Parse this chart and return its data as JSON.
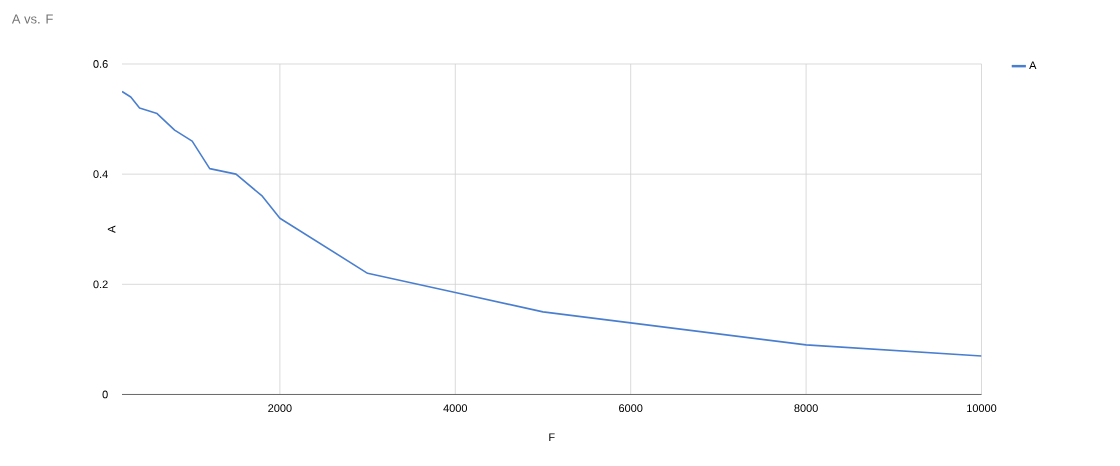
{
  "chart_data": {
    "type": "line",
    "title": "A vs. F",
    "xlabel": "F",
    "ylabel": "A",
    "x": [
      200,
      300,
      400,
      600,
      800,
      1000,
      1200,
      1500,
      1800,
      2000,
      3000,
      4000,
      5000,
      6000,
      8000,
      10000
    ],
    "series": [
      {
        "name": "A",
        "color": "#4a7fd0",
        "values": [
          0.55,
          0.54,
          0.52,
          0.51,
          0.48,
          0.46,
          0.41,
          0.4,
          0.36,
          0.32,
          0.22,
          0.185,
          0.15,
          0.13,
          0.09,
          0.07
        ]
      }
    ],
    "xlim": [
      200,
      10000
    ],
    "ylim": [
      0,
      0.6
    ],
    "xticks": [
      2000,
      4000,
      6000,
      8000,
      10000
    ],
    "yticks": [
      0,
      0.2,
      0.4,
      0.6
    ],
    "grid": true,
    "legend": "top right",
    "marker": "none",
    "line_style": "solid"
  }
}
